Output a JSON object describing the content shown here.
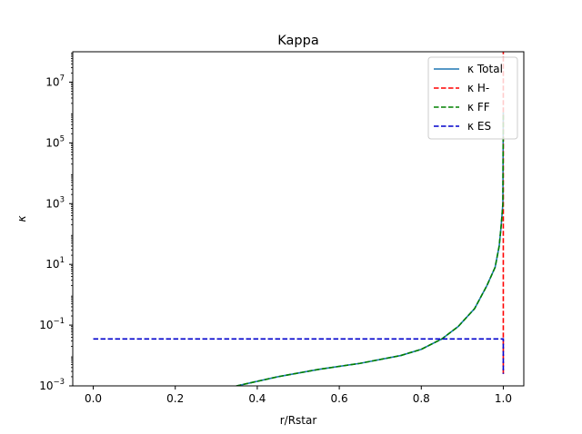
{
  "chart_data": {
    "type": "line",
    "title": "Kappa",
    "xlabel": "r/Rstar",
    "ylabel": "κ",
    "xlim": [
      -0.05,
      1.05
    ],
    "ylim": [
      0.001,
      100000000
    ],
    "yscale": "log",
    "grid": false,
    "legend_position": "top-right",
    "x_ticks": [
      {
        "value": 0.0,
        "label": "0.0"
      },
      {
        "value": 0.2,
        "label": "0.2"
      },
      {
        "value": 0.4,
        "label": "0.4"
      },
      {
        "value": 0.6,
        "label": "0.6"
      },
      {
        "value": 0.8,
        "label": "0.8"
      },
      {
        "value": 1.0,
        "label": "1.0"
      }
    ],
    "y_ticks": [
      {
        "value": 0.001,
        "base": "10",
        "exp": "−3"
      },
      {
        "value": 0.1,
        "base": "10",
        "exp": "−1"
      },
      {
        "value": 10,
        "base": "10",
        "exp": "1"
      },
      {
        "value": 1000,
        "base": "10",
        "exp": "3"
      },
      {
        "value": 100000,
        "base": "10",
        "exp": "5"
      },
      {
        "value": 10000000,
        "base": "10",
        "exp": "7"
      }
    ],
    "series": [
      {
        "name": "κ Total",
        "color": "#1f77b4",
        "dash": "solid",
        "x": [
          0.3,
          0.35,
          0.45,
          0.55,
          0.65,
          0.75,
          0.8,
          0.85,
          0.89,
          0.93,
          0.96,
          0.98,
          0.99,
          0.995,
          0.999,
          1.0
        ],
        "y": [
          0.0005,
          0.001,
          0.002,
          0.0035,
          0.0055,
          0.01,
          0.016,
          0.035,
          0.09,
          0.35,
          2.0,
          8.0,
          40,
          200,
          1000,
          1000000
        ]
      },
      {
        "name": "κ H-",
        "color": "#ff0000",
        "dash": "dashed",
        "x": [
          1.0,
          1.0
        ],
        "y": [
          0.0025,
          100000000
        ]
      },
      {
        "name": "κ FF",
        "color": "#008000",
        "dash": "dashed",
        "x": [
          0.3,
          0.35,
          0.45,
          0.55,
          0.65,
          0.75,
          0.8,
          0.85,
          0.89,
          0.93,
          0.96,
          0.98,
          0.99,
          0.995,
          0.999,
          1.0
        ],
        "y": [
          0.0005,
          0.001,
          0.002,
          0.0035,
          0.0055,
          0.01,
          0.016,
          0.035,
          0.09,
          0.35,
          2.0,
          8.0,
          40,
          200,
          1000,
          1000000
        ]
      },
      {
        "name": "κ ES",
        "color": "#0000cc",
        "dash": "dashed",
        "x": [
          0.0,
          1.0,
          1.0
        ],
        "y": [
          0.035,
          0.035,
          0.0025
        ]
      }
    ]
  }
}
